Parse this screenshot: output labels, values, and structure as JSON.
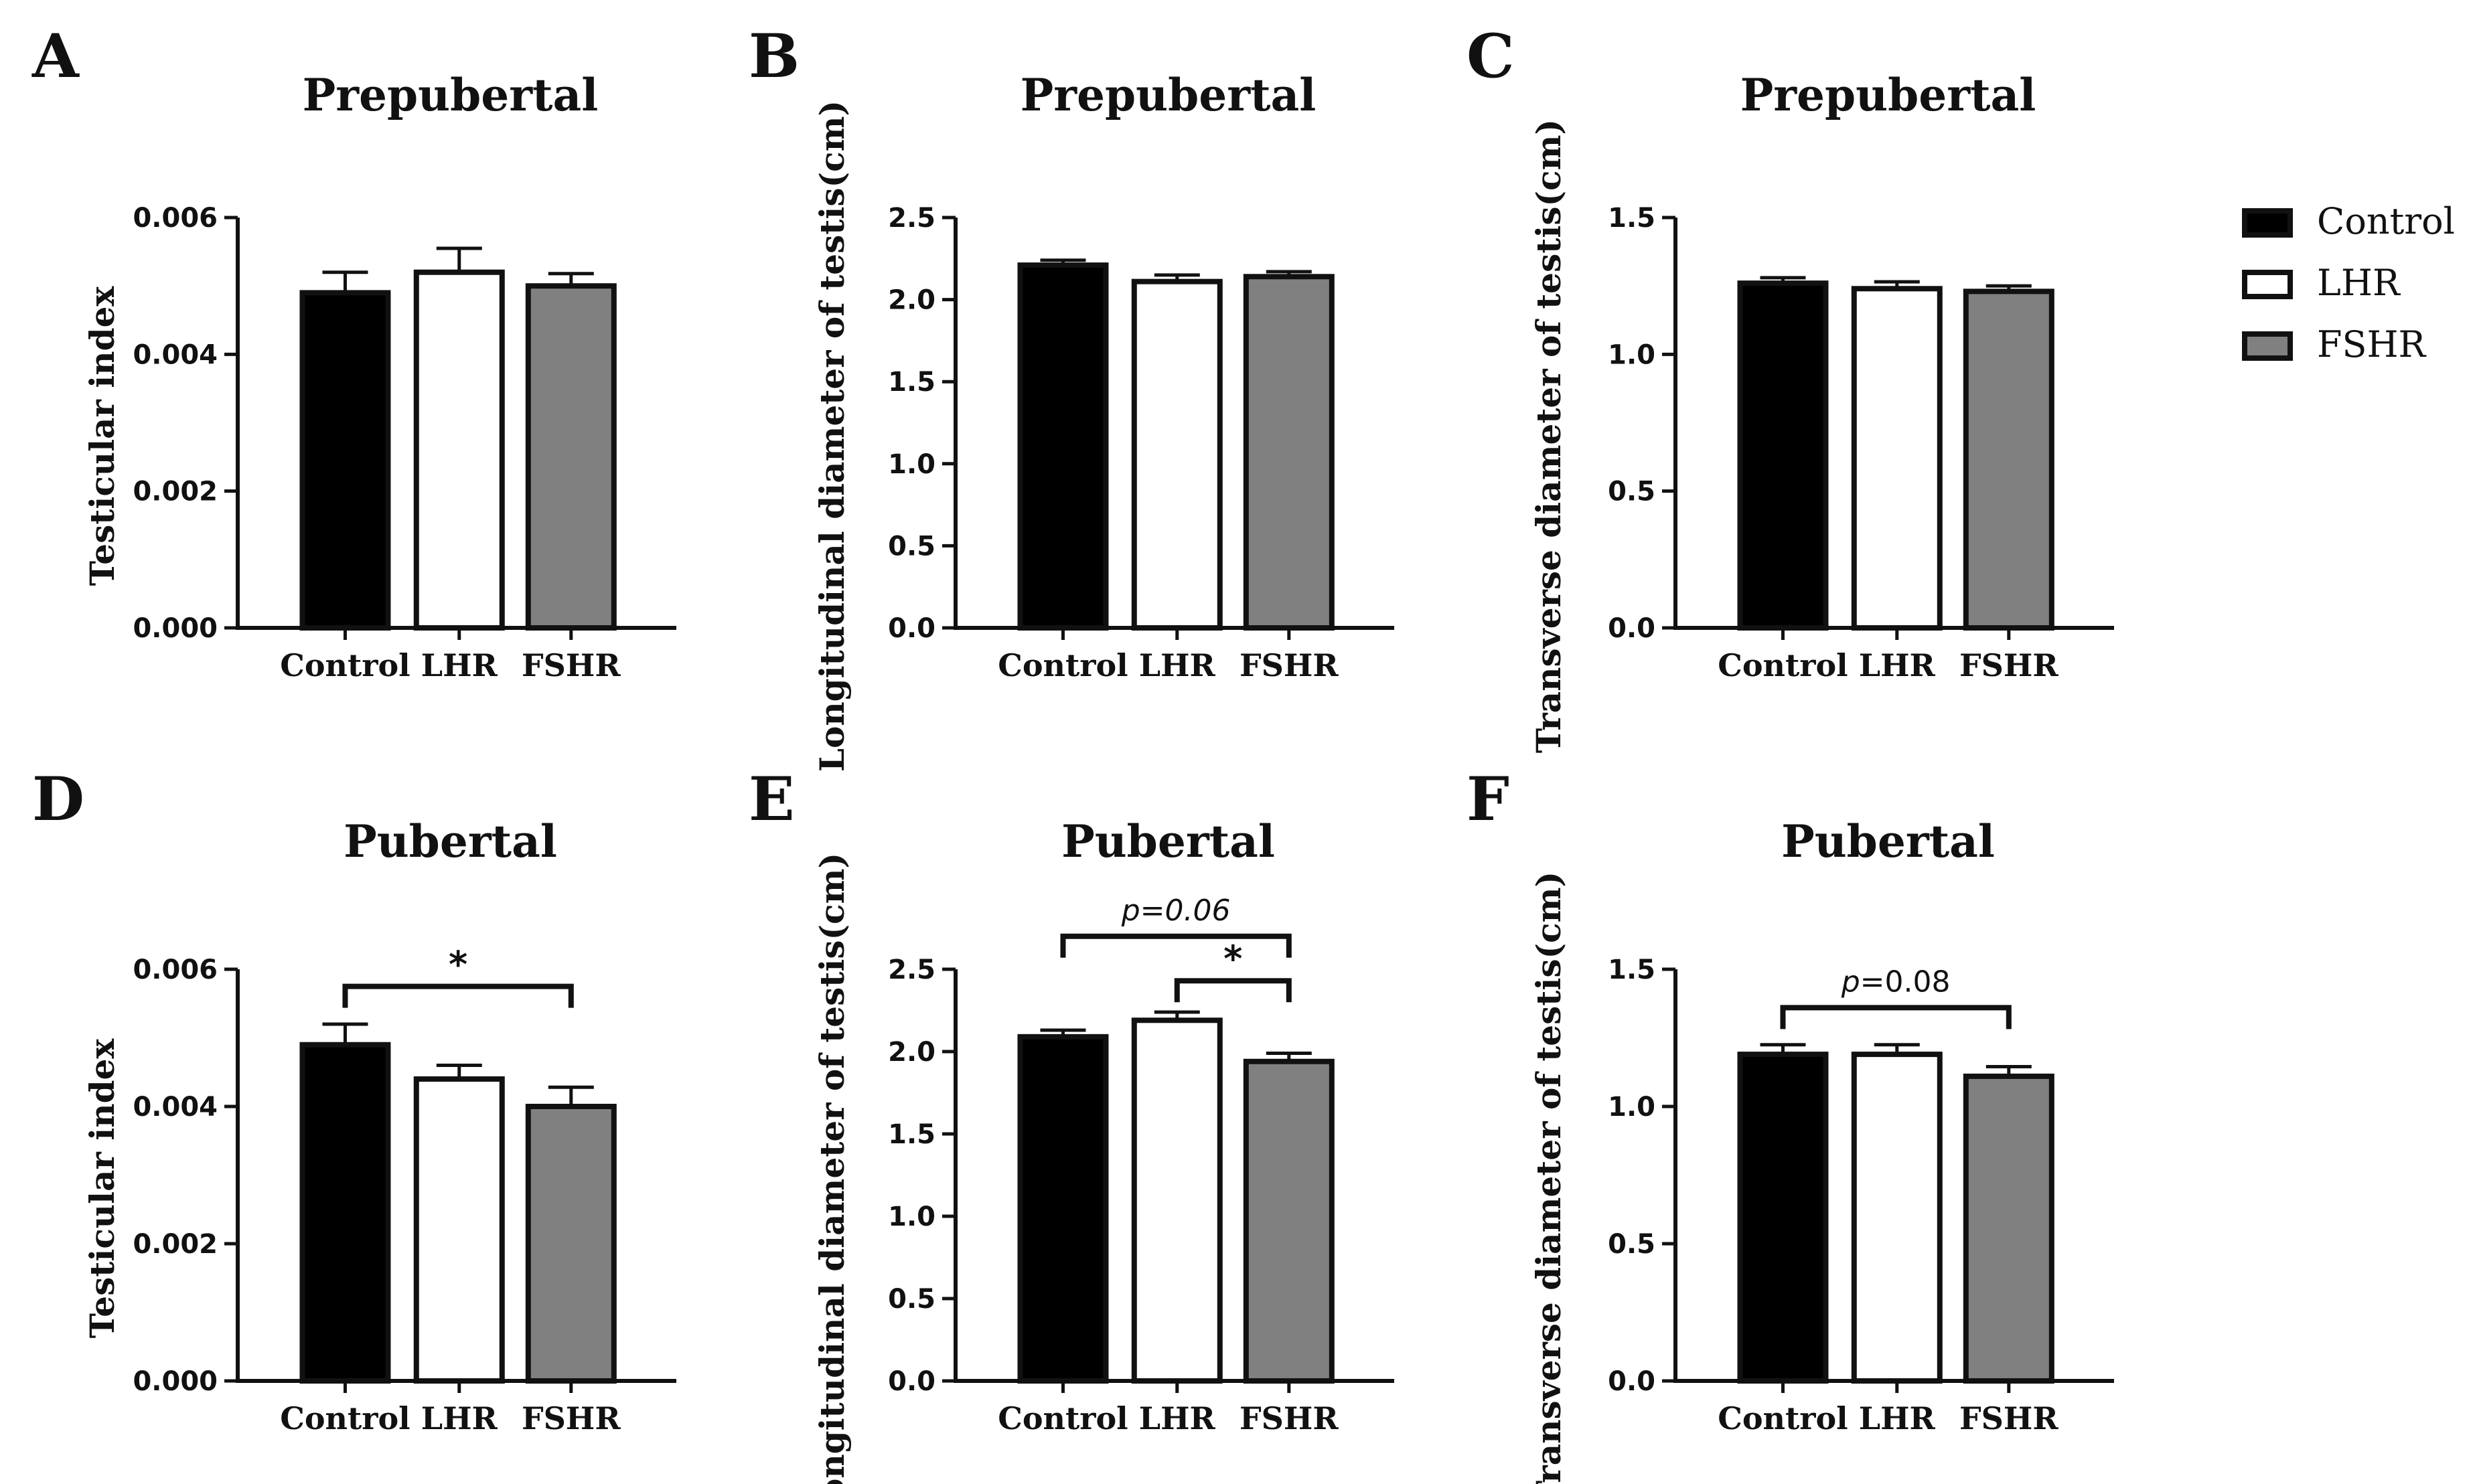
{
  "legend": {
    "items": [
      {
        "label": "Control",
        "color": "#000000"
      },
      {
        "label": "LHR",
        "color": "#ffffff"
      },
      {
        "label": "FSHR",
        "color": "#808080"
      }
    ]
  },
  "chart_data": [
    {
      "panel": "A",
      "type": "bar",
      "title": "Prepubertal",
      "xlabel": "",
      "ylabel": "Testicular index",
      "categories": [
        "Control",
        "LHR",
        "FSHR"
      ],
      "values": [
        0.0049,
        0.0052,
        0.005
      ],
      "errors": [
        0.0003,
        0.00035,
        0.00018
      ],
      "ylim": [
        0,
        0.006
      ],
      "yticks": [
        0,
        0.002,
        0.004,
        0.006
      ],
      "ytick_labels": [
        "0.000",
        "0.002",
        "0.004",
        "0.006"
      ],
      "colors": [
        "#000000",
        "#ffffff",
        "#808080"
      ],
      "annotations": []
    },
    {
      "panel": "B",
      "type": "bar",
      "title": "Prepubertal",
      "xlabel": "",
      "ylabel": "Longitudinal diameter of testis(cm)",
      "categories": [
        "Control",
        "LHR",
        "FSHR"
      ],
      "values": [
        2.21,
        2.11,
        2.14
      ],
      "errors": [
        0.03,
        0.04,
        0.03
      ],
      "ylim": [
        0,
        2.5
      ],
      "yticks": [
        0,
        0.5,
        1.0,
        1.5,
        2.0,
        2.5
      ],
      "ytick_labels": [
        "0.0",
        "0.5",
        "1.0",
        "1.5",
        "2.0",
        "2.5"
      ],
      "colors": [
        "#000000",
        "#ffffff",
        "#808080"
      ],
      "annotations": []
    },
    {
      "panel": "C",
      "type": "bar",
      "title": "Prepubertal",
      "xlabel": "",
      "ylabel": "Transverse diameter of testis(cm)",
      "categories": [
        "Control",
        "LHR",
        "FSHR"
      ],
      "values": [
        1.26,
        1.24,
        1.23
      ],
      "errors": [
        0.02,
        0.025,
        0.02
      ],
      "ylim": [
        0,
        1.5
      ],
      "yticks": [
        0,
        0.5,
        1.0,
        1.5
      ],
      "ytick_labels": [
        "0.0",
        "0.5",
        "1.0",
        "1.5"
      ],
      "colors": [
        "#000000",
        "#ffffff",
        "#808080"
      ],
      "annotations": []
    },
    {
      "panel": "D",
      "type": "bar",
      "title": "Pubertal",
      "xlabel": "",
      "ylabel": "Testicular index",
      "categories": [
        "Control",
        "LHR",
        "FSHR"
      ],
      "values": [
        0.0049,
        0.0044,
        0.004
      ],
      "errors": [
        0.0003,
        0.0002,
        0.00028
      ],
      "ylim": [
        0,
        0.006
      ],
      "yticks": [
        0,
        0.002,
        0.004,
        0.006
      ],
      "ytick_labels": [
        "0.000",
        "0.002",
        "0.004",
        "0.006"
      ],
      "colors": [
        "#000000",
        "#ffffff",
        "#808080"
      ],
      "annotations": [
        {
          "from": 0,
          "to": 2,
          "level": 0.00575,
          "text": "*",
          "style": "star"
        }
      ]
    },
    {
      "panel": "E",
      "type": "bar",
      "title": "Pubertal",
      "xlabel": "",
      "ylabel": "Longitudinal diameter of testis(cm)",
      "categories": [
        "Control",
        "LHR",
        "FSHR"
      ],
      "values": [
        2.09,
        2.19,
        1.94
      ],
      "errors": [
        0.04,
        0.05,
        0.05
      ],
      "ylim": [
        0,
        2.5
      ],
      "yticks": [
        0,
        0.5,
        1.0,
        1.5,
        2.0,
        2.5
      ],
      "ytick_labels": [
        "0.0",
        "0.5",
        "1.0",
        "1.5",
        "2.0",
        "2.5"
      ],
      "colors": [
        "#000000",
        "#ffffff",
        "#808080"
      ],
      "annotations": [
        {
          "from": 0,
          "to": 2,
          "level": 2.7,
          "text": "p=0.06",
          "style": "italic"
        },
        {
          "from": 1,
          "to": 2,
          "level": 2.43,
          "text": "*",
          "style": "star"
        }
      ]
    },
    {
      "panel": "F",
      "type": "bar",
      "title": "Pubertal",
      "xlabel": "",
      "ylabel": "Transverse diameter of testis(cm)",
      "categories": [
        "Control",
        "LHR",
        "FSHR"
      ],
      "values": [
        1.19,
        1.19,
        1.11
      ],
      "errors": [
        0.035,
        0.035,
        0.035
      ],
      "ylim": [
        0,
        1.5
      ],
      "yticks": [
        0,
        0.5,
        1.0,
        1.5
      ],
      "ytick_labels": [
        "0.0",
        "0.5",
        "1.0",
        "1.5"
      ],
      "colors": [
        "#000000",
        "#ffffff",
        "#808080"
      ],
      "annotations": [
        {
          "from": 0,
          "to": 2,
          "level": 1.36,
          "text": "p=0.08",
          "style": "p-mixed"
        }
      ]
    }
  ]
}
